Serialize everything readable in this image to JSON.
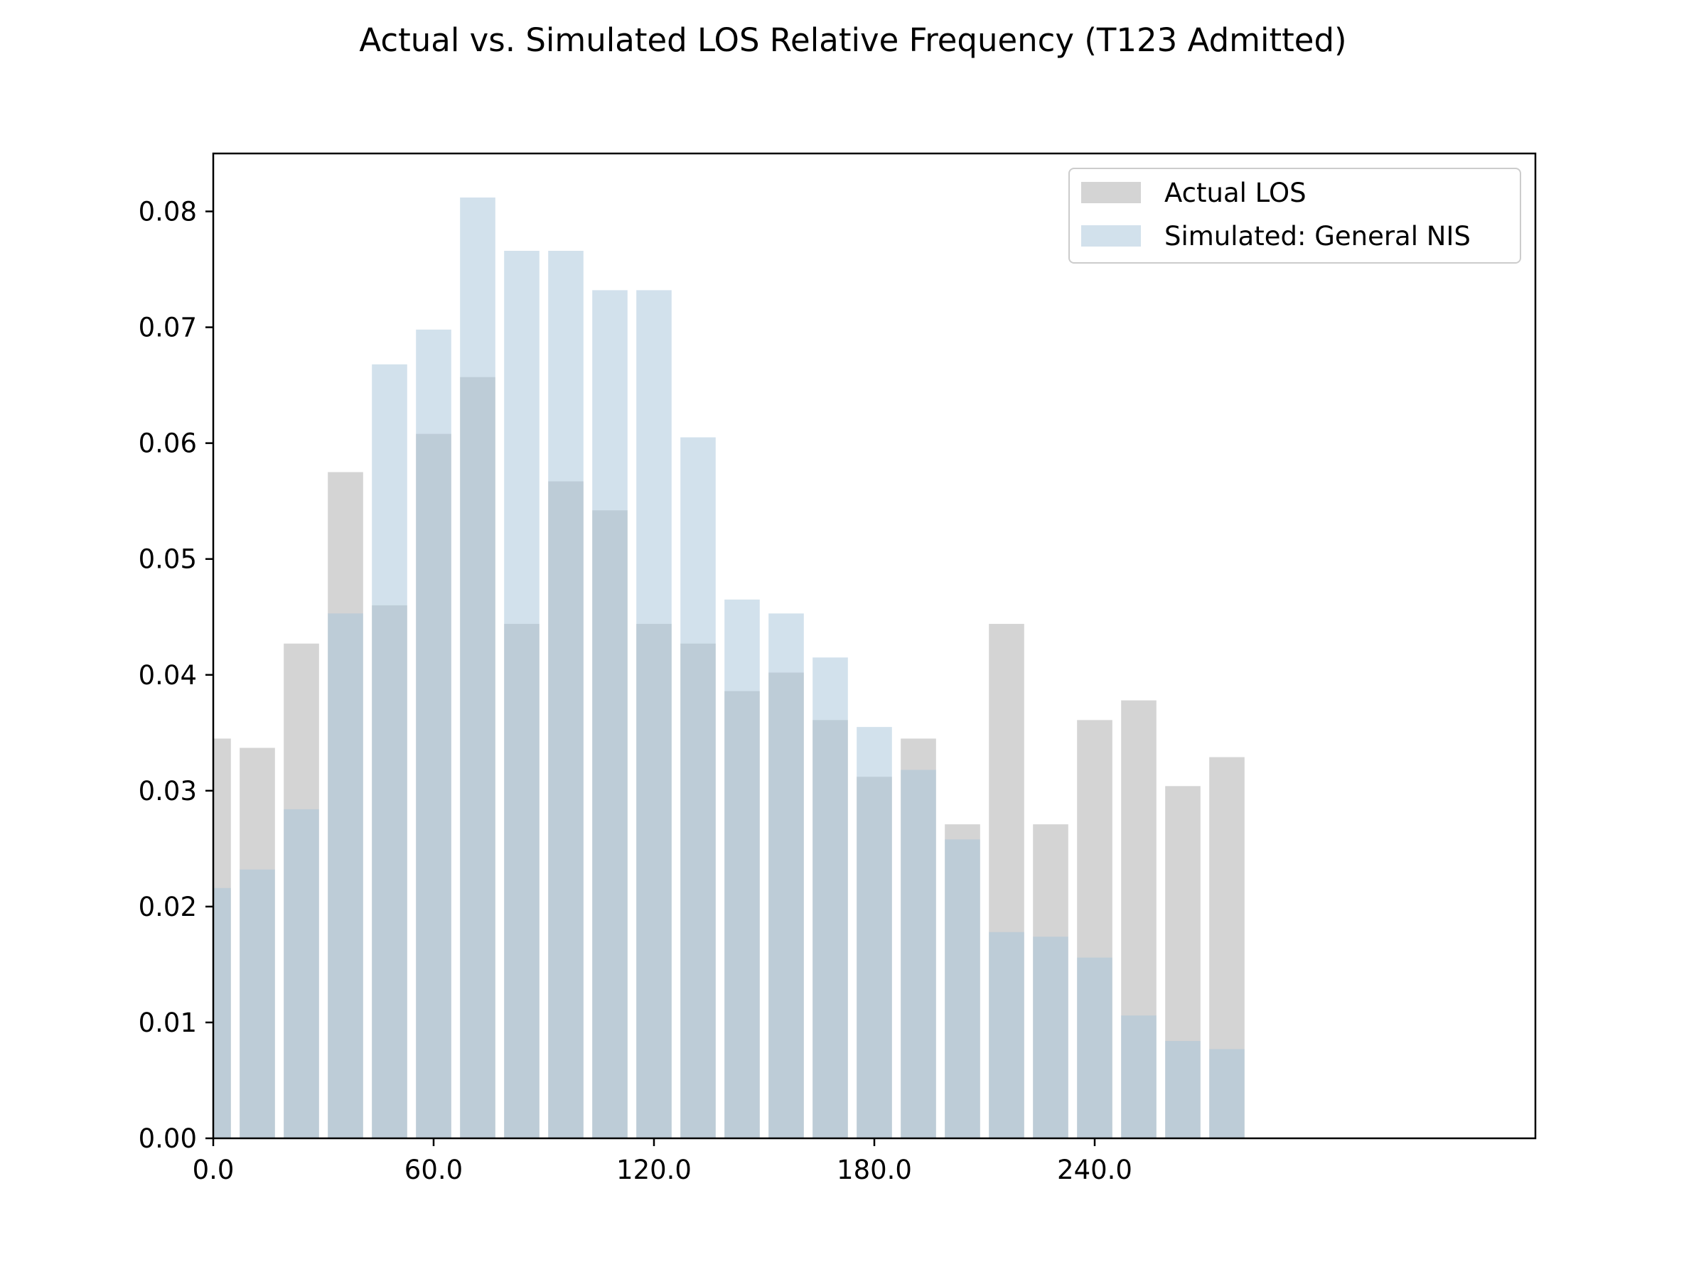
{
  "chart_data": {
    "type": "bar",
    "title": "Actual vs. Simulated LOS Relative Frequency (T123 Admitted)",
    "xlabel": "",
    "ylabel": "",
    "xlim": [
      0,
      360
    ],
    "ylim": [
      0,
      0.085
    ],
    "bin_width": 12,
    "x_ticks": [
      0,
      60,
      120,
      180,
      240
    ],
    "x_tick_labels": [
      "0.0",
      "60.0",
      "120.0",
      "180.0",
      "240.0"
    ],
    "y_ticks": [
      0,
      0.01,
      0.02,
      0.03,
      0.04,
      0.05,
      0.06,
      0.07,
      0.08
    ],
    "y_tick_labels": [
      "0.00",
      "0.01",
      "0.02",
      "0.03",
      "0.04",
      "0.05",
      "0.06",
      "0.07",
      "0.08"
    ],
    "x": [
      0,
      12,
      24,
      36,
      48,
      60,
      72,
      84,
      96,
      108,
      120,
      132,
      144,
      156,
      168,
      180,
      192,
      204,
      216,
      228,
      240,
      252,
      264,
      276
    ],
    "series": [
      {
        "name": "Actual LOS",
        "color": "#a9a9a9",
        "opacity": 0.5,
        "values": [
          0.0345,
          0.0337,
          0.0427,
          0.0575,
          0.046,
          0.0608,
          0.0657,
          0.0444,
          0.0567,
          0.0542,
          0.0444,
          0.0427,
          0.0386,
          0.0402,
          0.0361,
          0.0312,
          0.0345,
          0.0271,
          0.0444,
          0.0271,
          0.0361,
          0.0378,
          0.0304,
          0.0329
        ]
      },
      {
        "name": "Simulated: General NIS",
        "color": "#a6c4da",
        "opacity": 0.5,
        "values": [
          0.0216,
          0.0232,
          0.0284,
          0.0453,
          0.0668,
          0.0698,
          0.0812,
          0.0766,
          0.0766,
          0.0732,
          0.0732,
          0.0605,
          0.0465,
          0.0453,
          0.0415,
          0.0355,
          0.0318,
          0.0258,
          0.0178,
          0.0174,
          0.0156,
          0.0106,
          0.0084,
          0.0077
        ]
      }
    ],
    "grid": false,
    "legend_position": "top-right"
  }
}
